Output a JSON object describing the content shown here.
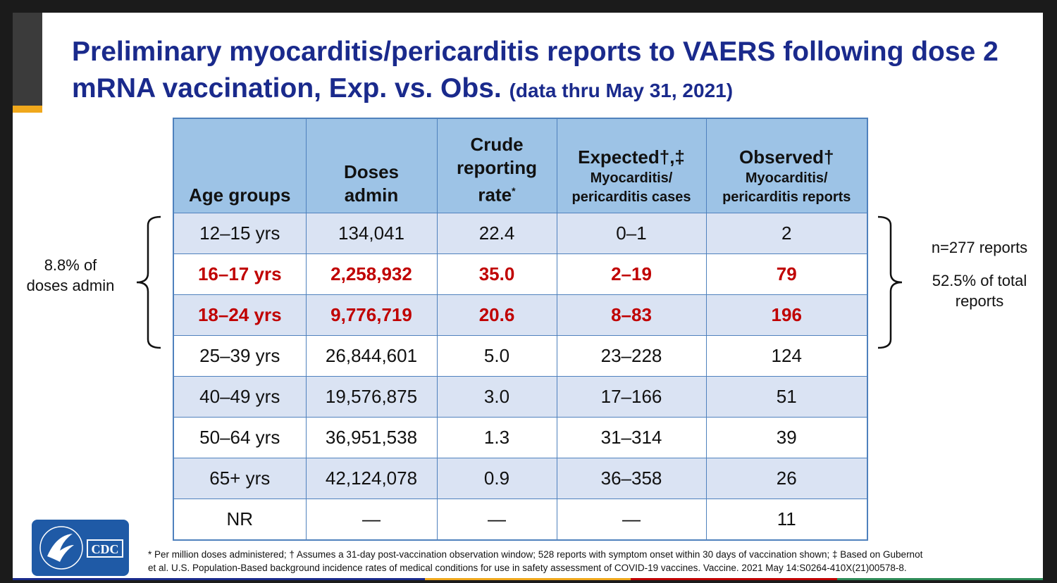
{
  "title": {
    "main": "Preliminary myocarditis/pericarditis reports to VAERS following dose 2 mRNA vaccination, Exp. vs. Obs.",
    "sub": "(data thru May 31, 2021)"
  },
  "table": {
    "headers": {
      "age": "Age groups",
      "doses": [
        "Doses",
        "admin"
      ],
      "crude": [
        "Crude",
        "reporting",
        "rate",
        "*"
      ],
      "expected": [
        "Expected†,‡",
        "Myocarditis/",
        "pericarditis cases"
      ],
      "observed": [
        "Observed†",
        "Myocarditis/",
        "pericarditis reports"
      ]
    },
    "rows": [
      {
        "age": "12–15 yrs",
        "doses": "134,041",
        "rate": "22.4",
        "expected": "0–1",
        "observed": "2"
      },
      {
        "age": "16–17 yrs",
        "doses": "2,258,932",
        "rate": "35.0",
        "expected": "2–19",
        "observed": "79"
      },
      {
        "age": "18–24 yrs",
        "doses": "9,776,719",
        "rate": "20.6",
        "expected": "8–83",
        "observed": "196"
      },
      {
        "age": "25–39 yrs",
        "doses": "26,844,601",
        "rate": "5.0",
        "expected": "23–228",
        "observed": "124"
      },
      {
        "age": "40–49 yrs",
        "doses": "19,576,875",
        "rate": "3.0",
        "expected": "17–166",
        "observed": "51"
      },
      {
        "age": "50–64 yrs",
        "doses": "36,951,538",
        "rate": "1.3",
        "expected": "31–314",
        "observed": "39"
      },
      {
        "age": "65+ yrs",
        "doses": "42,124,078",
        "rate": "0.9",
        "expected": "36–358",
        "observed": "26"
      },
      {
        "age": "NR",
        "doses": "—",
        "rate": "—",
        "expected": "—",
        "observed": "11"
      }
    ],
    "highlight_color": "#c00000",
    "header_color": "#9dc3e6",
    "band_color": "#dae3f3"
  },
  "annotations": {
    "left": [
      "8.8% of",
      "doses admin"
    ],
    "right_n": "n=277 reports",
    "right_pct": [
      "52.5% of total",
      "reports"
    ]
  },
  "footnote": {
    "line1": "* Per million doses administered; † Assumes a 31-day post-vaccination observation window; 528 reports with symptom onset within 30 days of vaccination shown; ‡ Based on Gubernot",
    "line2": "et al. U.S. Population-Based background incidence rates of medical conditions for use in safety assessment of COVID-19 vaccines. Vaccine. 2021 May 14:S0264-410X(21)00578-8."
  },
  "logo": {
    "text": "CDC",
    "icon": "hhs-eagle-icon",
    "color": "#1f5aa6"
  },
  "colors": {
    "title": "#1a2a8c",
    "accent": "#f0a81c"
  }
}
